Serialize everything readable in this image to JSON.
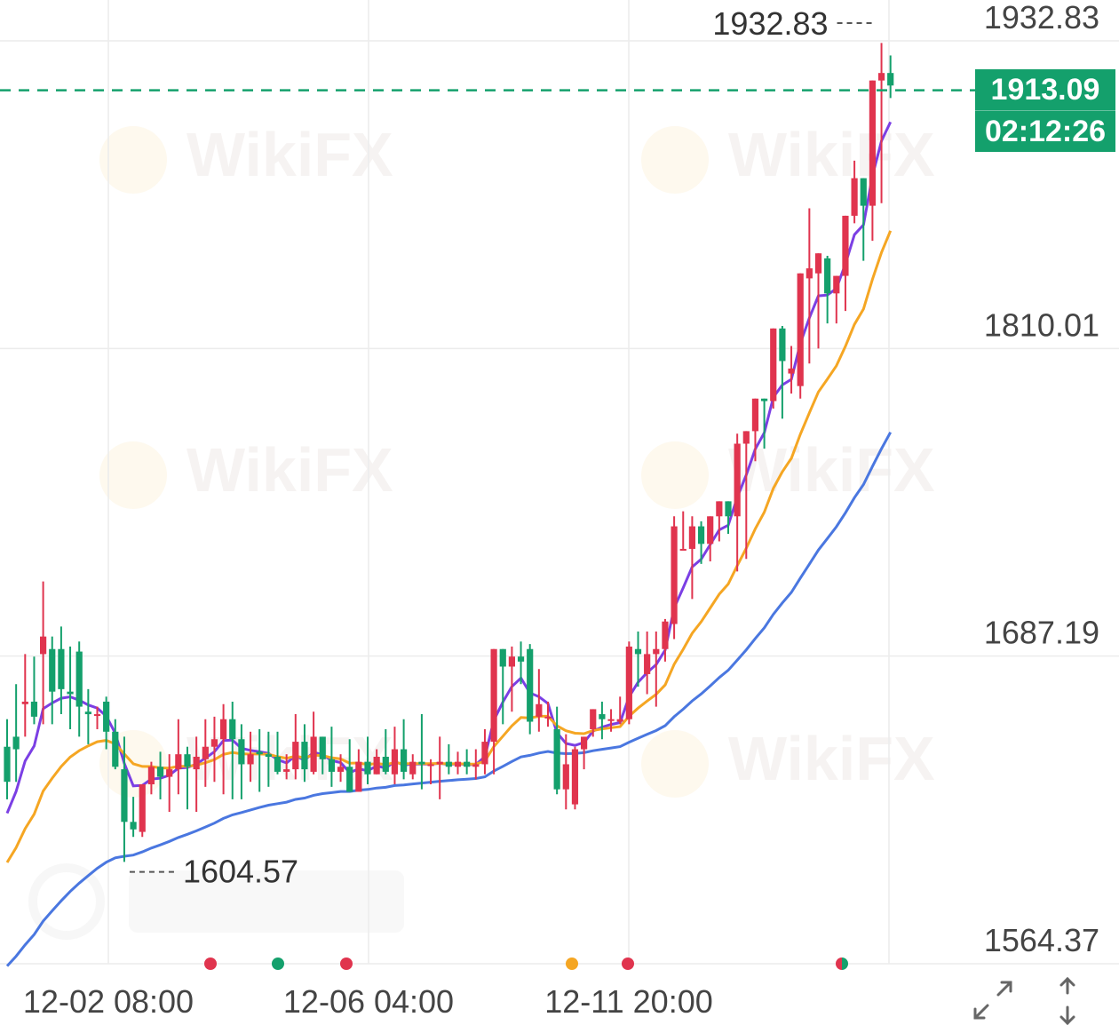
{
  "price_tag": {
    "price": "1913.09",
    "countdown": "02:12:26",
    "color": "#14a06c"
  },
  "annotations": {
    "high_label": "1932.83",
    "low_label": "1604.57"
  },
  "colors": {
    "up": "#e0344e",
    "down": "#14a06c",
    "ma_short": "#7b3fe4",
    "ma_mid": "#f5a623",
    "ma_long": "#4a77e0",
    "grid": "#ececec"
  },
  "controls": {
    "expand_icon": "expand-arrows-icon",
    "scale_icon": "vertical-scale-arrows-icon"
  },
  "event_dots": [
    {
      "x": "12-03 20:00",
      "color": "#e0344e"
    },
    {
      "x": "12-05 04:00",
      "color": "#14a06c"
    },
    {
      "x": "12-06 00:00",
      "color": "#e0344e"
    },
    {
      "x": "12-10 12:00",
      "color": "#f5a623"
    },
    {
      "x": "12-11 20:00",
      "color": "#e0344e"
    },
    {
      "x": "12-16 08:00",
      "color": "#e0344e/#14a06c"
    }
  ],
  "chart_data": {
    "type": "candlestick",
    "x_ticks": [
      "12-02 08:00",
      "12-06 04:00",
      "12-11 20:00"
    ],
    "y_ticks": [
      1564.37,
      1687.19,
      1810.01,
      1932.83
    ],
    "ylim": [
      1564.37,
      1932.83
    ],
    "grid": true,
    "current_price": 1913.09,
    "high": 1932.83,
    "low": 1604.57,
    "candles": [
      [
        1651,
        1662,
        1637,
        1630
      ],
      [
        1655,
        1676,
        1650,
        1637
      ],
      [
        1668,
        1688,
        1669,
        1655
      ],
      [
        1669,
        1687,
        1663,
        1660
      ],
      [
        1688,
        1717,
        1695,
        1660
      ],
      [
        1690,
        1695,
        1673,
        1660
      ],
      [
        1690,
        1699,
        1674,
        1664
      ],
      [
        1673,
        1691,
        1672,
        1658
      ],
      [
        1689,
        1693,
        1667,
        1655
      ],
      [
        1665,
        1674,
        1664,
        1652
      ],
      [
        1664,
        1667,
        1664,
        1658
      ],
      [
        1669,
        1671,
        1657,
        1650
      ],
      [
        1657,
        1662,
        1643,
        1642
      ],
      [
        1642,
        1655,
        1621,
        1605
      ],
      [
        1621,
        1631,
        1618,
        1615
      ],
      [
        1617,
        1631,
        1636,
        1615
      ],
      [
        1636,
        1645,
        1643,
        1632
      ],
      [
        1643,
        1649,
        1639,
        1630
      ],
      [
        1639,
        1648,
        1642,
        1625
      ],
      [
        1642,
        1662,
        1648,
        1632
      ],
      [
        1648,
        1651,
        1643,
        1626
      ],
      [
        1642,
        1655,
        1647,
        1625
      ],
      [
        1646,
        1662,
        1651,
        1635
      ],
      [
        1651,
        1663,
        1654,
        1637
      ],
      [
        1654,
        1668,
        1662,
        1632
      ],
      [
        1662,
        1669,
        1654,
        1630
      ],
      [
        1654,
        1660,
        1644,
        1630
      ],
      [
        1644,
        1657,
        1648,
        1637
      ],
      [
        1649,
        1658,
        1648,
        1633
      ],
      [
        1648,
        1657,
        1647,
        1635
      ],
      [
        1647,
        1657,
        1641,
        1640
      ],
      [
        1641,
        1648,
        1642,
        1638
      ],
      [
        1642,
        1664,
        1653,
        1638
      ],
      [
        1653,
        1660,
        1642,
        1637
      ],
      [
        1641,
        1665,
        1655,
        1640
      ],
      [
        1655,
        1650,
        1646,
        1640
      ],
      [
        1646,
        1659,
        1641,
        1635
      ],
      [
        1641,
        1648,
        1643,
        1637
      ],
      [
        1643,
        1654,
        1633,
        1633
      ],
      [
        1633,
        1650,
        1645,
        1633
      ],
      [
        1645,
        1655,
        1640,
        1636
      ],
      [
        1640,
        1650,
        1647,
        1640
      ],
      [
        1647,
        1658,
        1641,
        1640
      ],
      [
        1640,
        1659,
        1650,
        1636
      ],
      [
        1650,
        1662,
        1641,
        1638
      ],
      [
        1640,
        1648,
        1645,
        1638
      ],
      [
        1645,
        1664,
        1644,
        1634
      ],
      [
        1644,
        1646,
        1644,
        1636
      ],
      [
        1644,
        1655,
        1645,
        1630
      ],
      [
        1645,
        1652,
        1643,
        1640
      ],
      [
        1643,
        1649,
        1645,
        1640
      ],
      [
        1645,
        1650,
        1643,
        1640
      ],
      [
        1643,
        1650,
        1644,
        1638
      ],
      [
        1644,
        1658,
        1653,
        1640
      ],
      [
        1653,
        1690,
        1690,
        1640
      ],
      [
        1690,
        1688,
        1683,
        1660
      ],
      [
        1683,
        1691,
        1687,
        1665
      ],
      [
        1687,
        1693,
        1685,
        1676
      ],
      [
        1690,
        1692,
        1661,
        1656
      ],
      [
        1663,
        1682,
        1668,
        1657
      ],
      [
        1663,
        1669,
        1663,
        1659
      ],
      [
        1658,
        1667,
        1634,
        1632
      ],
      [
        1634,
        1656,
        1644,
        1626
      ],
      [
        1628,
        1651,
        1650,
        1626
      ],
      [
        1650,
        1655,
        1655,
        1642
      ],
      [
        1658,
        1665,
        1666,
        1655
      ],
      [
        1664,
        1669,
        1662,
        1654
      ],
      [
        1662,
        1666,
        1662,
        1657
      ],
      [
        1661,
        1671,
        1662,
        1660
      ],
      [
        1662,
        1693,
        1691,
        1660
      ],
      [
        1690,
        1697,
        1688,
        1675
      ],
      [
        1680,
        1697,
        1688,
        1672
      ],
      [
        1688,
        1697,
        1690,
        1667
      ],
      [
        1690,
        1702,
        1701,
        1685
      ],
      [
        1700,
        1743,
        1739,
        1694
      ],
      [
        1730,
        1745,
        1730,
        1730
      ],
      [
        1730,
        1743,
        1739,
        1710
      ],
      [
        1739,
        1741,
        1732,
        1724
      ],
      [
        1732,
        1735,
        1743,
        1725
      ],
      [
        1743,
        1748,
        1749,
        1733
      ],
      [
        1749,
        1749,
        1743,
        1736
      ],
      [
        1743,
        1776,
        1772,
        1721
      ],
      [
        1772,
        1776,
        1777,
        1726
      ],
      [
        1777,
        1780,
        1790,
        1765
      ],
      [
        1790,
        1789,
        1789,
        1770
      ],
      [
        1789,
        1815,
        1818,
        1786
      ],
      [
        1818,
        1819,
        1805,
        1782
      ],
      [
        1800,
        1811,
        1802,
        1792
      ],
      [
        1795,
        1820,
        1840,
        1790
      ],
      [
        1838,
        1866,
        1842,
        1804
      ],
      [
        1840,
        1840,
        1848,
        1810
      ],
      [
        1846,
        1847,
        1832,
        1820
      ],
      [
        1832,
        1817,
        1839,
        1820
      ],
      [
        1839,
        1843,
        1863,
        1825
      ],
      [
        1863,
        1885,
        1878,
        1860
      ],
      [
        1878,
        1862,
        1867,
        1845
      ],
      [
        1867,
        1915,
        1917,
        1853
      ],
      [
        1917,
        1932,
        1920,
        1868
      ],
      [
        1920,
        1927,
        1915,
        1910
      ]
    ],
    "series": [
      {
        "name": "",
        "color": "#7b3fe4"
      },
      {
        "name": "",
        "color": "#f5a623"
      },
      {
        "name": "",
        "color": "#4a77e0"
      }
    ]
  }
}
